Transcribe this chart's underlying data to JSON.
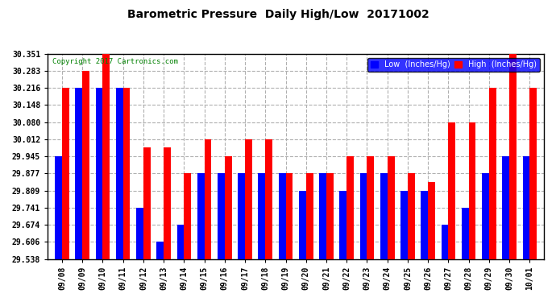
{
  "title": "Barometric Pressure  Daily High/Low  20171002",
  "copyright": "Copyright 2017 Cartronics.com",
  "legend_low": "Low  (Inches/Hg)",
  "legend_high": "High  (Inches/Hg)",
  "background_color": "#ffffff",
  "plot_bg_color": "#ffffff",
  "grid_color": "#b0b0b0",
  "bar_color_low": "#0000ff",
  "bar_color_high": "#ff0000",
  "ylim_min": 29.538,
  "ylim_max": 30.351,
  "yticks": [
    29.538,
    29.606,
    29.674,
    29.741,
    29.809,
    29.877,
    29.945,
    30.012,
    30.08,
    30.148,
    30.216,
    30.283,
    30.351
  ],
  "dates": [
    "09/08",
    "09/09",
    "09/10",
    "09/11",
    "09/12",
    "09/13",
    "09/14",
    "09/15",
    "09/16",
    "09/17",
    "09/18",
    "09/19",
    "09/20",
    "09/21",
    "09/22",
    "09/23",
    "09/24",
    "09/25",
    "09/26",
    "09/27",
    "09/28",
    "09/29",
    "09/30",
    "10/01"
  ],
  "low_values": [
    29.945,
    30.216,
    30.216,
    30.216,
    29.741,
    29.606,
    29.674,
    29.877,
    29.877,
    29.877,
    29.877,
    29.877,
    29.809,
    29.877,
    29.809,
    29.877,
    29.877,
    29.809,
    29.809,
    29.674,
    29.741,
    29.877,
    29.945,
    29.945
  ],
  "high_values": [
    30.216,
    30.283,
    30.351,
    30.216,
    29.98,
    29.98,
    29.877,
    30.012,
    29.945,
    30.012,
    30.012,
    29.877,
    29.877,
    29.877,
    29.945,
    29.945,
    29.945,
    29.877,
    29.843,
    30.08,
    30.08,
    30.216,
    30.351,
    30.216
  ]
}
